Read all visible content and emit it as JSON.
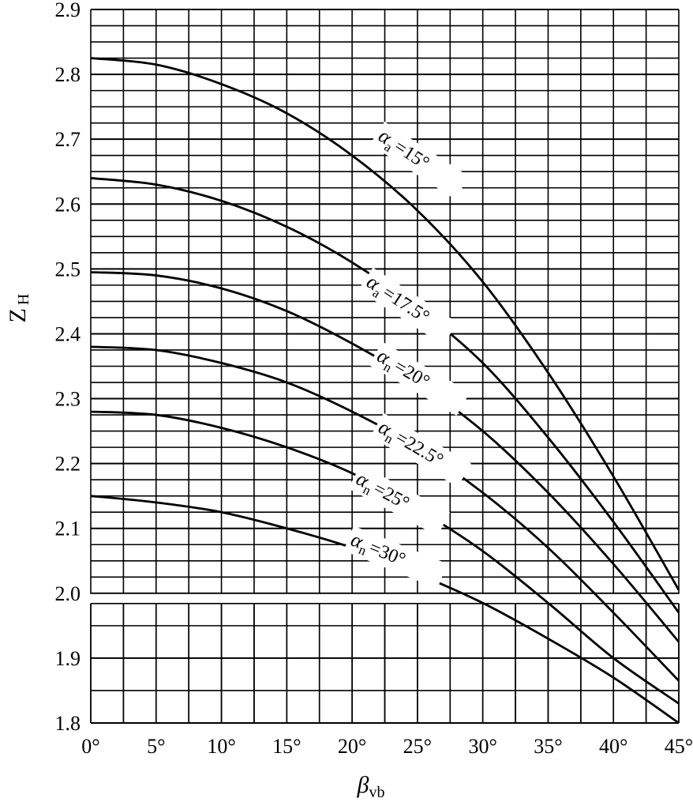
{
  "chart_data": {
    "type": "line",
    "xlabel": "β",
    "xlabel_sub": "vb",
    "ylabel": "Z",
    "ylabel_sub": "H",
    "xlim": [
      0,
      45
    ],
    "ylim": [
      1.8,
      2.9
    ],
    "grid": true,
    "x_ticks": [
      0,
      5,
      10,
      15,
      20,
      25,
      30,
      35,
      40,
      45
    ],
    "x_tick_labels": [
      "0°",
      "5°",
      "10°",
      "15°",
      "20°",
      "25°",
      "30°",
      "35°",
      "40°",
      "45°"
    ],
    "y_ticks": [
      1.8,
      1.9,
      2.0,
      2.1,
      2.2,
      2.3,
      2.4,
      2.5,
      2.6,
      2.7,
      2.8,
      2.9
    ],
    "y_tick_labels": [
      "1.8",
      "1.9",
      "2.0",
      "2.1",
      "2.2",
      "2.3",
      "2.4",
      "2.5",
      "2.6",
      "2.7",
      "2.8",
      "2.9"
    ],
    "series": [
      {
        "label_symbol": "α",
        "label_sub": "a",
        "label_value": "=15°",
        "x": [
          0,
          5,
          10,
          15,
          20,
          25,
          30,
          35,
          40,
          45
        ],
        "y": [
          2.825,
          2.815,
          2.785,
          2.74,
          2.675,
          2.59,
          2.48,
          2.34,
          2.18,
          2.005
        ]
      },
      {
        "label_symbol": "α",
        "label_sub": "a",
        "label_value": "=17.5°",
        "x": [
          0,
          5,
          10,
          15,
          20,
          25,
          30,
          35,
          40,
          45
        ],
        "y": [
          2.64,
          2.63,
          2.605,
          2.565,
          2.51,
          2.44,
          2.355,
          2.24,
          2.11,
          1.97
        ]
      },
      {
        "label_symbol": "α",
        "label_sub": "n",
        "label_value": "=20°",
        "x": [
          0,
          5,
          10,
          15,
          20,
          25,
          30,
          35,
          40,
          45
        ],
        "y": [
          2.495,
          2.49,
          2.47,
          2.435,
          2.385,
          2.325,
          2.25,
          2.155,
          2.045,
          1.925
        ]
      },
      {
        "label_symbol": "α",
        "label_sub": "n",
        "label_value": "=22.5°",
        "x": [
          0,
          5,
          10,
          15,
          20,
          25,
          30,
          35,
          40,
          45
        ],
        "y": [
          2.38,
          2.375,
          2.355,
          2.325,
          2.28,
          2.225,
          2.155,
          2.07,
          1.97,
          1.865
        ]
      },
      {
        "label_symbol": "α",
        "label_sub": "n",
        "label_value": "=25°",
        "x": [
          0,
          5,
          10,
          15,
          20,
          25,
          30,
          35,
          40,
          45
        ],
        "y": [
          2.28,
          2.275,
          2.255,
          2.225,
          2.185,
          2.13,
          2.065,
          1.985,
          1.9,
          1.83
        ]
      },
      {
        "label_symbol": "α",
        "label_sub": "n",
        "label_value": "=30°",
        "x": [
          0,
          5,
          10,
          15,
          20,
          25,
          30,
          35,
          40,
          45
        ],
        "y": [
          2.15,
          2.14,
          2.125,
          2.1,
          2.07,
          2.03,
          1.985,
          1.93,
          1.87,
          1.8
        ]
      }
    ]
  }
}
